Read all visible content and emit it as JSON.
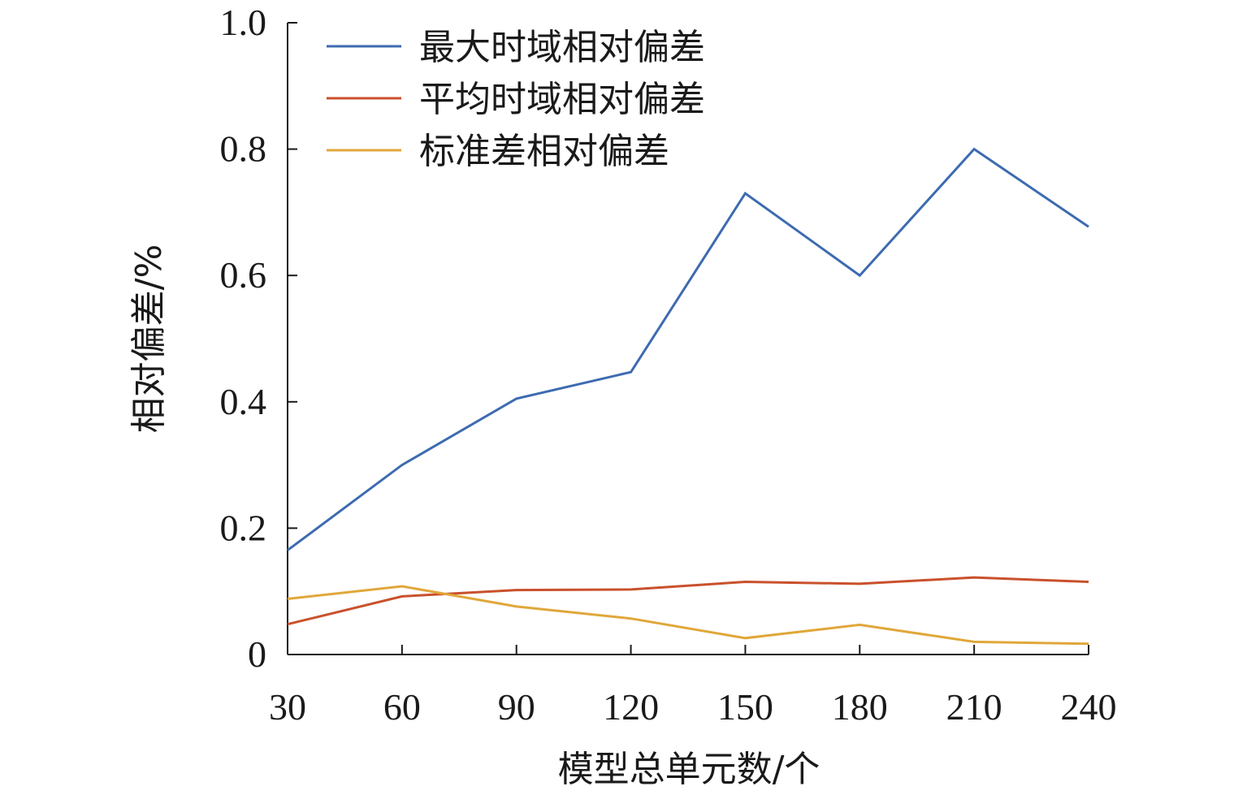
{
  "chart_data": {
    "type": "line",
    "title": "",
    "xlabel": "模型总单元数/个",
    "ylabel": "相对偏差/%",
    "categories": [
      "30",
      "60",
      "90",
      "120",
      "150",
      "180",
      "210",
      "240"
    ],
    "x": [
      30,
      60,
      90,
      120,
      150,
      180,
      210,
      240
    ],
    "xlim": [
      30,
      240
    ],
    "ylim": [
      0,
      1.0
    ],
    "yticks": [
      "0",
      "0.2",
      "0.4",
      "0.6",
      "0.8",
      "1.0"
    ],
    "ytick_values": [
      0,
      0.2,
      0.4,
      0.6,
      0.8,
      1.0
    ],
    "grid": false,
    "legend_position": "top-left",
    "series": [
      {
        "name": "最大时域相对偏差",
        "color": "#3d6bb0",
        "values": [
          0.165,
          0.3,
          0.405,
          0.447,
          0.73,
          0.6,
          0.8,
          0.677
        ]
      },
      {
        "name": "平均时域相对偏差",
        "color": "#c9512c",
        "values": [
          0.048,
          0.092,
          0.102,
          0.103,
          0.115,
          0.112,
          0.122,
          0.115
        ]
      },
      {
        "name": "标准差相对偏差",
        "color": "#e0a73a",
        "values": [
          0.088,
          0.108,
          0.076,
          0.057,
          0.026,
          0.047,
          0.02,
          0.017
        ]
      }
    ]
  }
}
